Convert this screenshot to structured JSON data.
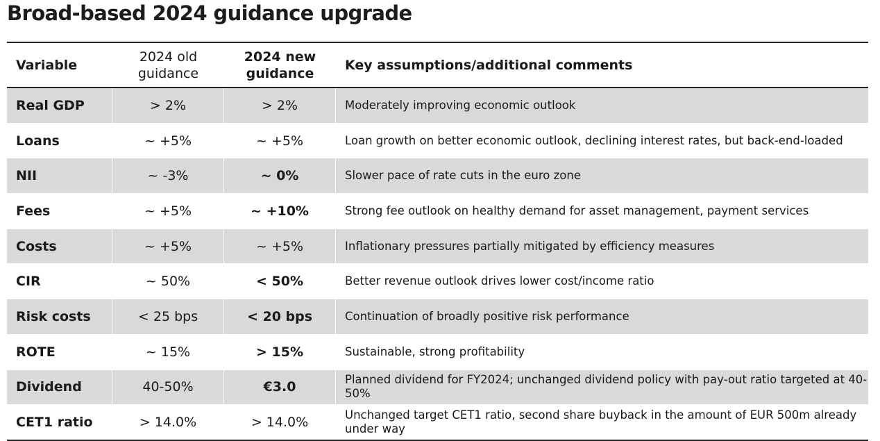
{
  "title": "Broad-based 2024 guidance upgrade",
  "table": {
    "headers": {
      "variable": "Variable",
      "old": "2024 old guidance",
      "new": "2024 new guidance",
      "comments": "Key assumptions/additional comments"
    },
    "rows": [
      {
        "variable": "Real GDP",
        "old": "> 2%",
        "new": "> 2%",
        "new_bold": false,
        "comment": "Moderately improving economic outlook",
        "shaded": true
      },
      {
        "variable": "Loans",
        "old": "~ +5%",
        "new": "~ +5%",
        "new_bold": false,
        "comment": "Loan growth on better economic outlook, declining interest rates, but back-end-loaded",
        "shaded": false
      },
      {
        "variable": "NII",
        "old": "~ -3%",
        "new": "~ 0%",
        "new_bold": true,
        "comment": "Slower pace of rate cuts in the euro zone",
        "shaded": true
      },
      {
        "variable": "Fees",
        "old": "~ +5%",
        "new": "~ +10%",
        "new_bold": true,
        "comment": "Strong fee outlook on healthy demand for asset management, payment services",
        "shaded": false
      },
      {
        "variable": "Costs",
        "old": "~ +5%",
        "new": "~ +5%",
        "new_bold": false,
        "comment": "Inflationary pressures partially mitigated by efficiency measures",
        "shaded": true
      },
      {
        "variable": "CIR",
        "old": "~ 50%",
        "new": "< 50%",
        "new_bold": true,
        "comment": "Better revenue outlook drives lower cost/income ratio",
        "shaded": false
      },
      {
        "variable": "Risk costs",
        "old": "< 25 bps",
        "new": "< 20 bps",
        "new_bold": true,
        "comment": "Continuation of broadly positive risk performance",
        "shaded": true
      },
      {
        "variable": "ROTE",
        "old": "~ 15%",
        "new": "> 15%",
        "new_bold": true,
        "comment": "Sustainable, strong profitability",
        "shaded": false
      },
      {
        "variable": "Dividend",
        "old": "40-50%",
        "new": "€3.0",
        "new_bold": true,
        "comment": "Planned dividend for FY2024; unchanged dividend policy with pay-out ratio targeted at 40-50%",
        "shaded": true
      },
      {
        "variable": "CET1 ratio",
        "old": "> 14.0%",
        "new": "> 14.0%",
        "new_bold": false,
        "comment": "Unchanged target CET1 ratio, second share buyback in the amount of EUR 500m already under way",
        "shaded": false
      }
    ]
  }
}
